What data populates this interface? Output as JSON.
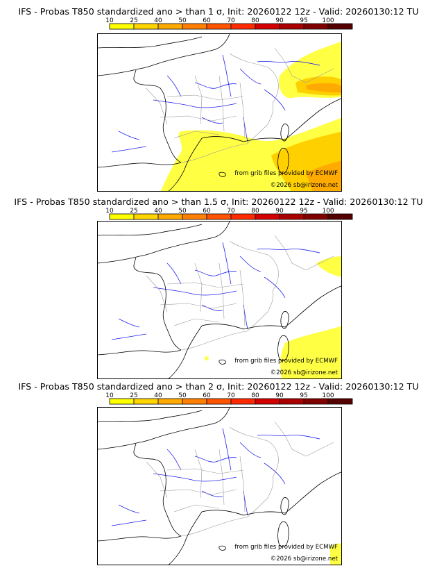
{
  "colors": {
    "legend": [
      "#ffff00",
      "#ffd500",
      "#ffaa00",
      "#ff8000",
      "#ff5500",
      "#ff2a00",
      "#d40000",
      "#aa0000",
      "#800000",
      "#550000"
    ],
    "coast": "#000000",
    "river": "#2020ee",
    "border": "#999999"
  },
  "legend_ticks": [
    "10",
    "25",
    "40",
    "50",
    "60",
    "70",
    "80",
    "90",
    "95",
    "100"
  ],
  "credit_source": "from grib files provided by ECMWF",
  "credit_copyright": "©2026 sb@irizone.net",
  "panels": [
    {
      "title": "IFS - Probas T850  standardized ano > than 1 σ, Init: 20260122 12z - Valid: 20260130:12 TU",
      "threshold": "1",
      "coverage": "high"
    },
    {
      "title": "IFS - Probas T850  standardized ano > than 1.5 σ, Init: 20260122 12z - Valid: 20260130:12 TU",
      "threshold": "1.5",
      "coverage": "medium"
    },
    {
      "title": "IFS - Probas T850  standardized ano > than 2 σ, Init: 20260122 12z - Valid: 20260130:12 TU",
      "threshold": "2",
      "coverage": "low"
    }
  ]
}
